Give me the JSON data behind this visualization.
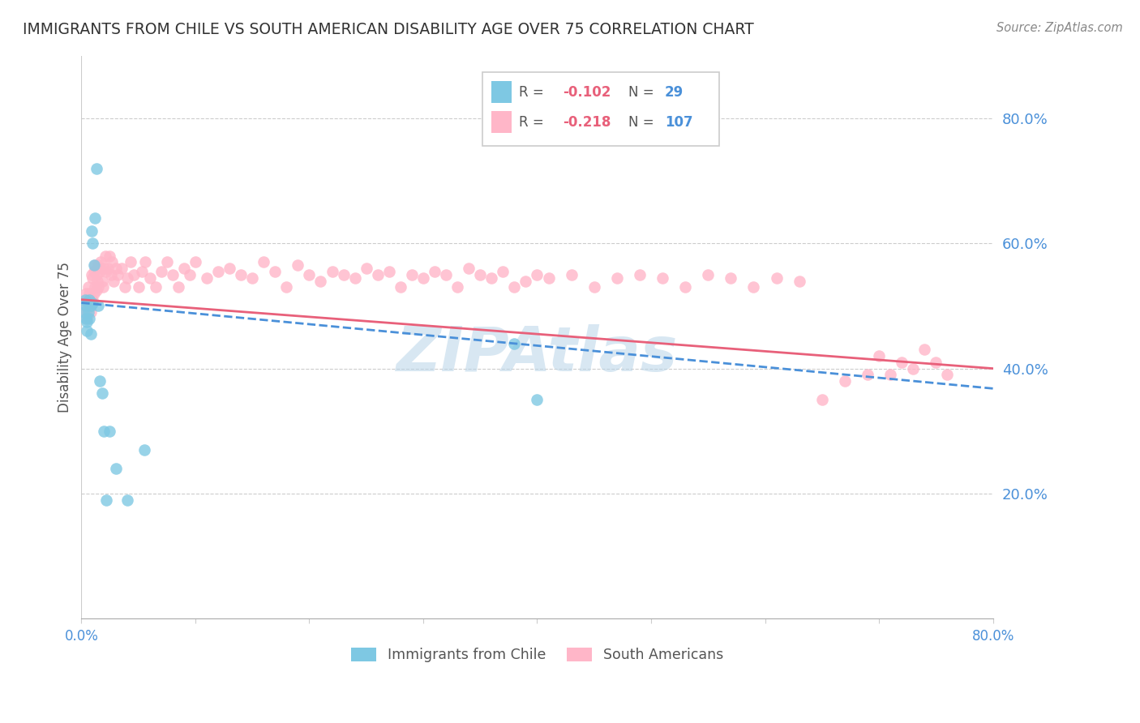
{
  "title": "IMMIGRANTS FROM CHILE VS SOUTH AMERICAN DISABILITY AGE OVER 75 CORRELATION CHART",
  "source": "Source: ZipAtlas.com",
  "ylabel": "Disability Age Over 75",
  "legend1_label": "Immigrants from Chile",
  "legend2_label": "South Americans",
  "r1": -0.102,
  "n1": 29,
  "r2": -0.218,
  "n2": 107,
  "color_blue": "#7ec8e3",
  "color_pink": "#ffb6c8",
  "color_blue_line": "#4a90d9",
  "color_pink_line": "#e8607a",
  "color_axis_label": "#4a90d9",
  "xlim": [
    0.0,
    0.8
  ],
  "ylim": [
    0.0,
    0.9
  ],
  "ytick_values": [
    0.2,
    0.4,
    0.6,
    0.8
  ],
  "ytick_labels": [
    "20.0%",
    "40.0%",
    "60.0%",
    "80.0%"
  ],
  "chile_line_y0": 0.505,
  "chile_line_y1": 0.368,
  "sa_line_y0": 0.51,
  "sa_line_y1": 0.4,
  "chile_x": [
    0.002,
    0.003,
    0.004,
    0.004,
    0.005,
    0.005,
    0.006,
    0.006,
    0.007,
    0.007,
    0.008,
    0.008,
    0.009,
    0.01,
    0.01,
    0.011,
    0.012,
    0.013,
    0.015,
    0.016,
    0.018,
    0.02,
    0.022,
    0.025,
    0.03,
    0.04,
    0.055,
    0.38,
    0.4
  ],
  "chile_y": [
    0.49,
    0.51,
    0.48,
    0.5,
    0.475,
    0.46,
    0.505,
    0.49,
    0.51,
    0.48,
    0.5,
    0.455,
    0.62,
    0.6,
    0.505,
    0.565,
    0.64,
    0.72,
    0.5,
    0.38,
    0.36,
    0.3,
    0.19,
    0.3,
    0.24,
    0.19,
    0.27,
    0.44,
    0.35
  ],
  "sa_x": [
    0.003,
    0.004,
    0.004,
    0.005,
    0.005,
    0.006,
    0.006,
    0.007,
    0.007,
    0.008,
    0.008,
    0.009,
    0.009,
    0.01,
    0.01,
    0.011,
    0.011,
    0.012,
    0.012,
    0.013,
    0.013,
    0.014,
    0.015,
    0.015,
    0.016,
    0.017,
    0.018,
    0.019,
    0.02,
    0.021,
    0.022,
    0.023,
    0.025,
    0.026,
    0.027,
    0.028,
    0.03,
    0.032,
    0.035,
    0.038,
    0.04,
    0.043,
    0.046,
    0.05,
    0.053,
    0.056,
    0.06,
    0.065,
    0.07,
    0.075,
    0.08,
    0.085,
    0.09,
    0.095,
    0.1,
    0.11,
    0.12,
    0.13,
    0.14,
    0.15,
    0.16,
    0.17,
    0.18,
    0.19,
    0.2,
    0.21,
    0.22,
    0.23,
    0.24,
    0.25,
    0.26,
    0.27,
    0.28,
    0.29,
    0.3,
    0.31,
    0.32,
    0.33,
    0.34,
    0.35,
    0.36,
    0.37,
    0.38,
    0.39,
    0.4,
    0.41,
    0.43,
    0.45,
    0.47,
    0.49,
    0.51,
    0.53,
    0.55,
    0.57,
    0.59,
    0.61,
    0.63,
    0.65,
    0.67,
    0.69,
    0.7,
    0.71,
    0.72,
    0.73,
    0.74,
    0.75,
    0.76
  ],
  "sa_y": [
    0.5,
    0.52,
    0.49,
    0.51,
    0.48,
    0.53,
    0.5,
    0.52,
    0.51,
    0.5,
    0.49,
    0.55,
    0.51,
    0.545,
    0.51,
    0.555,
    0.52,
    0.565,
    0.53,
    0.55,
    0.525,
    0.54,
    0.565,
    0.53,
    0.555,
    0.57,
    0.54,
    0.53,
    0.56,
    0.58,
    0.555,
    0.56,
    0.58,
    0.55,
    0.57,
    0.54,
    0.56,
    0.55,
    0.56,
    0.53,
    0.545,
    0.57,
    0.55,
    0.53,
    0.555,
    0.57,
    0.545,
    0.53,
    0.555,
    0.57,
    0.55,
    0.53,
    0.56,
    0.55,
    0.57,
    0.545,
    0.555,
    0.56,
    0.55,
    0.545,
    0.57,
    0.555,
    0.53,
    0.565,
    0.55,
    0.54,
    0.555,
    0.55,
    0.545,
    0.56,
    0.55,
    0.555,
    0.53,
    0.55,
    0.545,
    0.555,
    0.55,
    0.53,
    0.56,
    0.55,
    0.545,
    0.555,
    0.53,
    0.54,
    0.55,
    0.545,
    0.55,
    0.53,
    0.545,
    0.55,
    0.545,
    0.53,
    0.55,
    0.545,
    0.53,
    0.545,
    0.54,
    0.35,
    0.38,
    0.39,
    0.42,
    0.39,
    0.41,
    0.4,
    0.43,
    0.41,
    0.39
  ]
}
